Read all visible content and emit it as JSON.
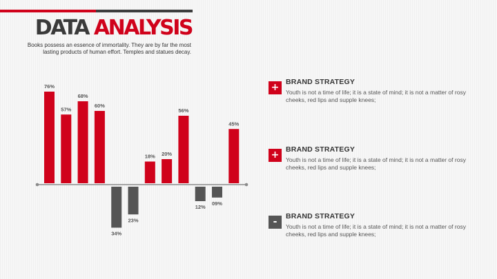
{
  "header": {
    "title_part1": "DATA",
    "title_part2": "ANALYSIS",
    "subtitle": "Books possess an essence of immortality. They are by far the most lasting products of human effort. Temples and statues decay."
  },
  "colors": {
    "positive": "#d0021b",
    "negative": "#555555",
    "axis": "#8a8a8a",
    "accent_dark": "#3a3a3a"
  },
  "chart_data": {
    "type": "bar",
    "values": [
      76,
      57,
      68,
      60,
      -34,
      -23,
      18,
      20,
      56,
      -12,
      -9,
      45
    ],
    "labels": [
      "76%",
      "57%",
      "68%",
      "60%",
      "34%",
      "23%",
      "18%",
      "20%",
      "56%",
      "12%",
      "09%",
      "45%"
    ],
    "gridlines": false,
    "legend": "none"
  },
  "panels": [
    {
      "icon": "plus-icon",
      "symbol": "+",
      "color": "#d0021b",
      "title": "BRAND STRATEGY",
      "text": "Youth is not a time of life; it is a state of mind; it is not a matter of rosy cheeks, red lips and supple knees;"
    },
    {
      "icon": "plus-icon",
      "symbol": "+",
      "color": "#d0021b",
      "title": "BRAND STRATEGY",
      "text": "Youth is not a time of life; it is a state of mind; it is not a matter of rosy cheeks, red lips and supple knees;"
    },
    {
      "icon": "minus-icon",
      "symbol": "-",
      "color": "#555555",
      "title": "BRAND STRATEGY",
      "text": "Youth is not a time of life; it is a state of mind; it is not a matter of rosy cheeks, red lips and supple knees;"
    }
  ]
}
